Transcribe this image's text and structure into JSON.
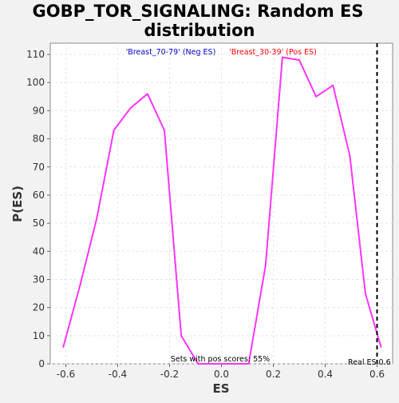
{
  "chart_data": {
    "type": "line",
    "title_lines": [
      "GOBP_TOR_SIGNALING: Random ES",
      "distribution"
    ],
    "xlabel": "ES",
    "ylabel": "P(ES)",
    "xlim": [
      -0.66,
      0.66
    ],
    "ylim": [
      0,
      114
    ],
    "xticks": [
      -0.6,
      -0.4,
      -0.2,
      0.0,
      0.2,
      0.4,
      0.6
    ],
    "xtick_labels": [
      "-0.6",
      "-0.4",
      "-0.2",
      "0.0",
      "0.2",
      "0.4",
      "0.6"
    ],
    "yticks": [
      0,
      10,
      20,
      30,
      40,
      50,
      60,
      70,
      80,
      90,
      100,
      110
    ],
    "ytick_labels": [
      "0",
      "10",
      "20",
      "30",
      "40",
      "50",
      "60",
      "70",
      "80",
      "90",
      "100",
      "110"
    ],
    "grid": true,
    "series": [
      {
        "color": "#ff33ff",
        "x": [
          -0.61,
          -0.545,
          -0.48,
          -0.415,
          -0.35,
          -0.285,
          -0.22,
          -0.155,
          -0.09,
          -0.025,
          0.04,
          0.105,
          0.17,
          0.235,
          0.3,
          0.365,
          0.43,
          0.495,
          0.555,
          0.615
        ],
        "y": [
          6,
          28,
          52,
          83,
          91,
          96,
          83,
          10,
          0,
          0,
          0,
          0,
          35,
          109,
          108,
          95,
          99,
          74,
          25,
          6
        ]
      }
    ],
    "real_es": {
      "x": 0.6,
      "label": "Real ES 0.6",
      "color": "#000000"
    },
    "annotations": {
      "neg_label": "'Breast_70-79' (Neg ES)",
      "neg_color": "#0000cc",
      "pos_label": "'Breast_30-39' (Pos ES)",
      "pos_color": "#ff0000",
      "footer": "Sets with pos scores: 55%"
    }
  }
}
